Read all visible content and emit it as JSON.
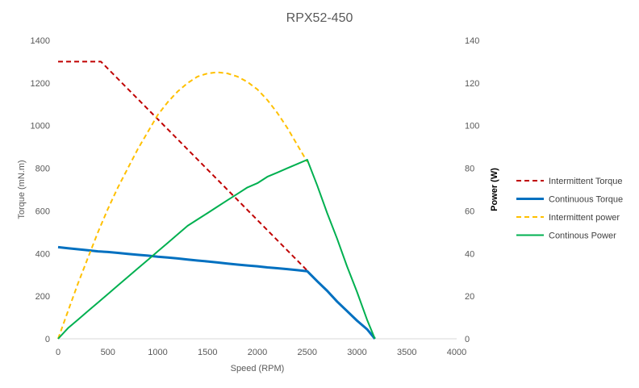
{
  "chart_data": {
    "type": "line",
    "title": "RPX52-450",
    "xlabel": "Speed (RPM)",
    "ylabel_left": "Torque (mN.m)",
    "ylabel_right": "Power (W)",
    "xlim": [
      0,
      4000
    ],
    "ylim_left": [
      0,
      1400
    ],
    "ylim_right": [
      0,
      140
    ],
    "x_ticks": [
      0,
      500,
      1000,
      1500,
      2000,
      2500,
      3000,
      3500,
      4000
    ],
    "y_left_ticks": [
      0,
      200,
      400,
      600,
      800,
      1000,
      1200,
      1400
    ],
    "y_right_ticks": [
      0,
      20,
      40,
      60,
      80,
      100,
      120,
      140
    ],
    "grid": false,
    "legend_position": "right",
    "series": [
      {
        "name": "Intermittent Torque",
        "axis": "left",
        "color": "#C00000",
        "dash": true,
        "points": [
          [
            0,
            1300
          ],
          [
            430,
            1300
          ],
          [
            2500,
            320
          ]
        ]
      },
      {
        "name": "Continuous Torque",
        "axis": "left",
        "color": "#0070C0",
        "dash": false,
        "points": [
          [
            0,
            430
          ],
          [
            100,
            425
          ],
          [
            200,
            420
          ],
          [
            300,
            415
          ],
          [
            400,
            410
          ],
          [
            500,
            407
          ],
          [
            600,
            403
          ],
          [
            700,
            398
          ],
          [
            800,
            394
          ],
          [
            900,
            390
          ],
          [
            1000,
            385
          ],
          [
            1100,
            381
          ],
          [
            1200,
            377
          ],
          [
            1300,
            372
          ],
          [
            1400,
            367
          ],
          [
            1500,
            363
          ],
          [
            1600,
            358
          ],
          [
            1700,
            353
          ],
          [
            1800,
            348
          ],
          [
            1900,
            344
          ],
          [
            2000,
            340
          ],
          [
            2100,
            335
          ],
          [
            2200,
            331
          ],
          [
            2300,
            327
          ],
          [
            2400,
            322
          ],
          [
            2500,
            317
          ],
          [
            2600,
            270
          ],
          [
            2700,
            225
          ],
          [
            2800,
            175
          ],
          [
            2900,
            130
          ],
          [
            3000,
            85
          ],
          [
            3100,
            45
          ],
          [
            3180,
            0
          ]
        ]
      },
      {
        "name": "Intermittent power",
        "axis": "right",
        "color": "#FFC000",
        "dash": true,
        "points": [
          [
            0,
            0
          ],
          [
            100,
            13
          ],
          [
            200,
            26
          ],
          [
            300,
            38
          ],
          [
            400,
            50
          ],
          [
            500,
            61
          ],
          [
            600,
            71
          ],
          [
            700,
            80
          ],
          [
            800,
            89
          ],
          [
            900,
            97
          ],
          [
            1000,
            105
          ],
          [
            1100,
            111
          ],
          [
            1200,
            116
          ],
          [
            1300,
            120
          ],
          [
            1400,
            123
          ],
          [
            1500,
            124.5
          ],
          [
            1600,
            125
          ],
          [
            1700,
            124.5
          ],
          [
            1800,
            123
          ],
          [
            1900,
            120.5
          ],
          [
            2000,
            117
          ],
          [
            2100,
            112
          ],
          [
            2200,
            106
          ],
          [
            2300,
            99
          ],
          [
            2400,
            91
          ],
          [
            2500,
            83
          ]
        ]
      },
      {
        "name": "Continous Power",
        "axis": "right",
        "color": "#00B050",
        "dash": false,
        "points": [
          [
            0,
            0
          ],
          [
            100,
            5
          ],
          [
            200,
            9
          ],
          [
            300,
            13
          ],
          [
            400,
            17
          ],
          [
            500,
            21
          ],
          [
            600,
            25
          ],
          [
            700,
            29
          ],
          [
            800,
            33
          ],
          [
            900,
            37
          ],
          [
            1000,
            41
          ],
          [
            1100,
            45
          ],
          [
            1200,
            49
          ],
          [
            1300,
            53
          ],
          [
            1400,
            56
          ],
          [
            1500,
            59
          ],
          [
            1600,
            62
          ],
          [
            1700,
            65
          ],
          [
            1800,
            68
          ],
          [
            1900,
            71
          ],
          [
            2000,
            73
          ],
          [
            2100,
            76
          ],
          [
            2200,
            78
          ],
          [
            2300,
            80
          ],
          [
            2400,
            82
          ],
          [
            2500,
            84
          ],
          [
            2600,
            72
          ],
          [
            2700,
            59
          ],
          [
            2800,
            47
          ],
          [
            2900,
            34
          ],
          [
            3000,
            22
          ],
          [
            3100,
            9
          ],
          [
            3180,
            0
          ]
        ]
      }
    ]
  }
}
